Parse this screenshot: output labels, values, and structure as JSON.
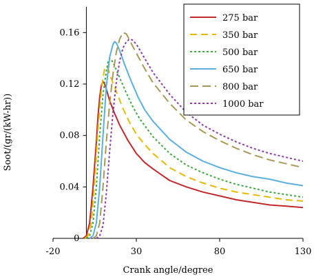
{
  "chart_data": {
    "type": "line",
    "title": "",
    "xlabel": "Crank angle/degree",
    "ylabel": "Soot/(gr/(kW-hr))",
    "xlim": [
      -20,
      130
    ],
    "ylim": [
      0,
      0.18
    ],
    "x_ticks": [
      "-20",
      "30",
      "80",
      "130"
    ],
    "y_ticks": [
      "0",
      "0.04",
      "0.08",
      "0.12",
      "0.16"
    ],
    "legend_position": "top-right",
    "grid": false,
    "series": [
      {
        "name": "275 bar",
        "color": "#c0282a",
        "dash": "solid",
        "points": [
          [
            -2,
            0
          ],
          [
            0,
            0.002
          ],
          [
            2,
            0.012
          ],
          [
            4,
            0.04
          ],
          [
            6,
            0.075
          ],
          [
            7,
            0.095
          ],
          [
            8,
            0.11
          ],
          [
            9,
            0.119
          ],
          [
            10,
            0.122
          ],
          [
            11,
            0.12
          ],
          [
            12,
            0.116
          ],
          [
            14,
            0.107
          ],
          [
            17,
            0.097
          ],
          [
            20,
            0.088
          ],
          [
            25,
            0.076
          ],
          [
            30,
            0.066
          ],
          [
            35,
            0.059
          ],
          [
            40,
            0.054
          ],
          [
            50,
            0.045
          ],
          [
            60,
            0.04
          ],
          [
            70,
            0.036
          ],
          [
            80,
            0.033
          ],
          [
            90,
            0.03
          ],
          [
            100,
            0.028
          ],
          [
            110,
            0.026
          ],
          [
            120,
            0.025
          ],
          [
            130,
            0.024
          ]
        ]
      },
      {
        "name": "350 bar",
        "color": "#e8b800",
        "dash": "10,6",
        "points": [
          [
            -1,
            0
          ],
          [
            1,
            0.002
          ],
          [
            3,
            0.012
          ],
          [
            5,
            0.045
          ],
          [
            7,
            0.085
          ],
          [
            9,
            0.115
          ],
          [
            10,
            0.125
          ],
          [
            11,
            0.132
          ],
          [
            12,
            0.134
          ],
          [
            13,
            0.132
          ],
          [
            15,
            0.124
          ],
          [
            18,
            0.114
          ],
          [
            22,
            0.101
          ],
          [
            26,
            0.09
          ],
          [
            30,
            0.081
          ],
          [
            35,
            0.073
          ],
          [
            40,
            0.066
          ],
          [
            50,
            0.055
          ],
          [
            60,
            0.048
          ],
          [
            70,
            0.043
          ],
          [
            80,
            0.039
          ],
          [
            90,
            0.036
          ],
          [
            100,
            0.034
          ],
          [
            110,
            0.032
          ],
          [
            120,
            0.03
          ],
          [
            130,
            0.029
          ]
        ]
      },
      {
        "name": "500 bar",
        "color": "#3aa93a",
        "dash": "3,3",
        "points": [
          [
            0,
            0
          ],
          [
            2,
            0.002
          ],
          [
            4,
            0.012
          ],
          [
            6,
            0.04
          ],
          [
            8,
            0.08
          ],
          [
            10,
            0.112
          ],
          [
            12,
            0.13
          ],
          [
            13,
            0.137
          ],
          [
            14,
            0.14
          ],
          [
            15,
            0.139
          ],
          [
            17,
            0.134
          ],
          [
            20,
            0.125
          ],
          [
            24,
            0.113
          ],
          [
            28,
            0.102
          ],
          [
            32,
            0.093
          ],
          [
            36,
            0.086
          ],
          [
            40,
            0.079
          ],
          [
            50,
            0.066
          ],
          [
            60,
            0.057
          ],
          [
            70,
            0.051
          ],
          [
            80,
            0.046
          ],
          [
            90,
            0.042
          ],
          [
            100,
            0.039
          ],
          [
            110,
            0.036
          ],
          [
            120,
            0.034
          ],
          [
            130,
            0.032
          ]
        ]
      },
      {
        "name": "650 bar",
        "color": "#5aaee0",
        "dash": "solid",
        "points": [
          [
            2,
            0
          ],
          [
            4,
            0.002
          ],
          [
            6,
            0.012
          ],
          [
            8,
            0.04
          ],
          [
            10,
            0.08
          ],
          [
            12,
            0.118
          ],
          [
            14,
            0.141
          ],
          [
            16,
            0.151
          ],
          [
            17,
            0.153
          ],
          [
            18,
            0.152
          ],
          [
            20,
            0.146
          ],
          [
            23,
            0.135
          ],
          [
            27,
            0.122
          ],
          [
            31,
            0.11
          ],
          [
            35,
            0.1
          ],
          [
            40,
            0.091
          ],
          [
            50,
            0.077
          ],
          [
            60,
            0.067
          ],
          [
            70,
            0.06
          ],
          [
            80,
            0.055
          ],
          [
            90,
            0.051
          ],
          [
            100,
            0.048
          ],
          [
            110,
            0.046
          ],
          [
            120,
            0.043
          ],
          [
            130,
            0.041
          ]
        ]
      },
      {
        "name": "800 bar",
        "color": "#a89858",
        "dash": "12,6",
        "points": [
          [
            4,
            0
          ],
          [
            6,
            0.002
          ],
          [
            8,
            0.012
          ],
          [
            10,
            0.04
          ],
          [
            12,
            0.075
          ],
          [
            14,
            0.105
          ],
          [
            16,
            0.128
          ],
          [
            18,
            0.145
          ],
          [
            20,
            0.155
          ],
          [
            22,
            0.16
          ],
          [
            24,
            0.159
          ],
          [
            26,
            0.154
          ],
          [
            30,
            0.144
          ],
          [
            35,
            0.132
          ],
          [
            40,
            0.121
          ],
          [
            50,
            0.105
          ],
          [
            60,
            0.092
          ],
          [
            70,
            0.083
          ],
          [
            80,
            0.076
          ],
          [
            90,
            0.07
          ],
          [
            100,
            0.065
          ],
          [
            110,
            0.061
          ],
          [
            120,
            0.058
          ],
          [
            130,
            0.055
          ]
        ]
      },
      {
        "name": "1000 bar",
        "color": "#8a3aa8",
        "dash": "3,3",
        "points": [
          [
            6,
            0
          ],
          [
            8,
            0.002
          ],
          [
            10,
            0.01
          ],
          [
            12,
            0.035
          ],
          [
            14,
            0.068
          ],
          [
            16,
            0.098
          ],
          [
            18,
            0.122
          ],
          [
            20,
            0.138
          ],
          [
            22,
            0.148
          ],
          [
            24,
            0.153
          ],
          [
            26,
            0.155
          ],
          [
            28,
            0.154
          ],
          [
            31,
            0.149
          ],
          [
            35,
            0.14
          ],
          [
            40,
            0.129
          ],
          [
            50,
            0.112
          ],
          [
            60,
            0.098
          ],
          [
            70,
            0.088
          ],
          [
            80,
            0.081
          ],
          [
            90,
            0.075
          ],
          [
            100,
            0.07
          ],
          [
            110,
            0.066
          ],
          [
            120,
            0.063
          ],
          [
            130,
            0.06
          ]
        ]
      }
    ]
  }
}
